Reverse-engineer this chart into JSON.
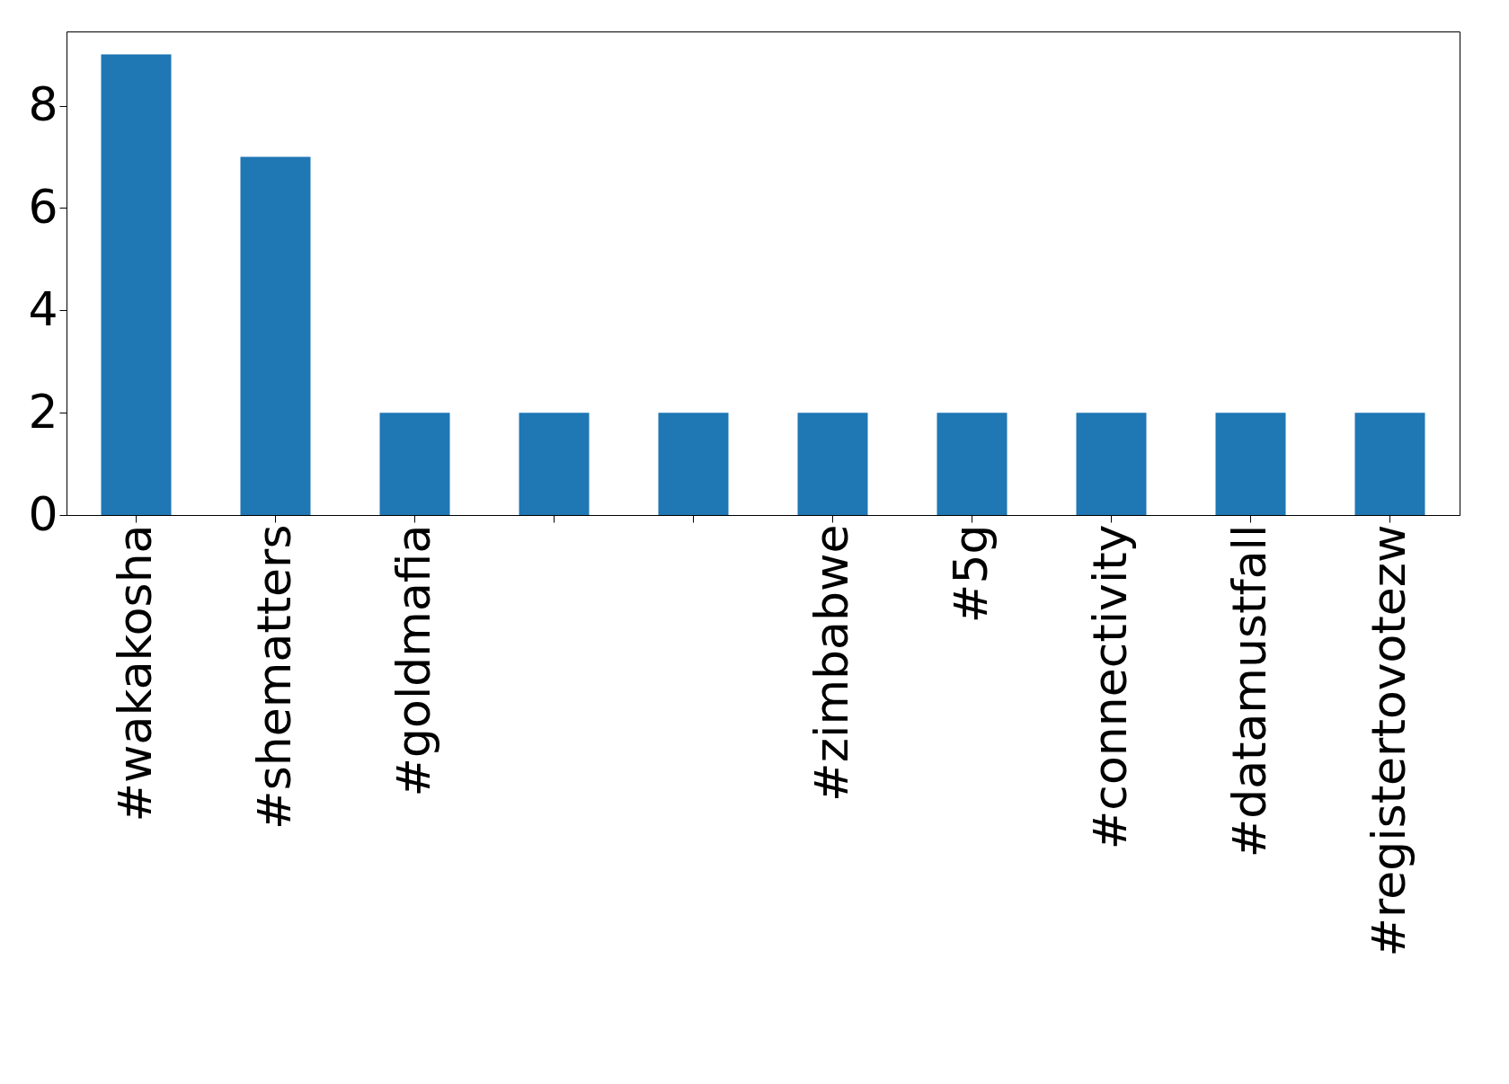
{
  "chart_data": {
    "type": "bar",
    "categories": [
      "#wakakosha",
      "#shematters",
      "#goldmafia",
      null,
      null,
      "#zimbabwe",
      "#5g",
      "#connectivity",
      "#datamustfall",
      "#registertovotezw"
    ],
    "values": [
      9,
      7,
      2,
      2,
      2,
      2,
      2,
      2,
      2,
      2
    ],
    "color": "#1f77b4",
    "ylim": [
      0,
      9.45
    ],
    "yticks": [
      0,
      2,
      4,
      6,
      8
    ],
    "grid": false
  }
}
